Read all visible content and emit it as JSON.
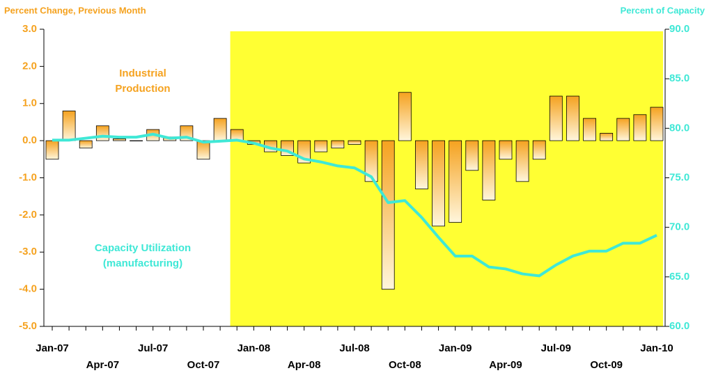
{
  "chart_data": {
    "type": "bar",
    "y_label": "Percent Change, Previous Month",
    "y2_label": "Percent of Capacity",
    "annotations": [
      {
        "lines": [
          "Industrial",
          "Production"
        ],
        "color": "#f5a21f"
      },
      {
        "lines": [
          "Capacity Utilization",
          "(manufacturing)"
        ],
        "color": "#3fe8d6"
      }
    ],
    "categories": [
      "Jan-07",
      null,
      null,
      "Apr-07",
      null,
      null,
      "Jul-07",
      null,
      null,
      "Oct-07",
      null,
      null,
      "Jan-08",
      null,
      null,
      "Apr-08",
      null,
      null,
      "Jul-08",
      null,
      null,
      "Oct-08",
      null,
      null,
      "Jan-09",
      null,
      null,
      "Apr-09",
      null,
      null,
      "Jul-09",
      null,
      null,
      "Oct-09",
      null,
      null,
      "Jan-10"
    ],
    "series": [
      {
        "type": "bar",
        "color": "#f5a21f",
        "values": [
          -0.5,
          0.8,
          -0.2,
          0.4,
          0.05,
          0.0,
          0.3,
          0.1,
          0.4,
          -0.5,
          0.6,
          0.3,
          -0.1,
          -0.3,
          -0.4,
          -0.6,
          -0.3,
          -0.2,
          -0.1,
          -1.1,
          -4.0,
          1.3,
          -1.3,
          -2.3,
          -2.2,
          -0.8,
          -1.6,
          -0.5,
          -1.1,
          -0.5,
          1.2,
          1.2,
          0.6,
          0.2,
          0.6,
          0.7,
          0.9
        ]
      },
      {
        "type": "line",
        "axis": "y2",
        "color": "#3fe8d6",
        "values": [
          78.8,
          78.8,
          79.0,
          79.2,
          79.1,
          79.1,
          79.4,
          79.0,
          79.1,
          78.6,
          78.7,
          78.8,
          78.5,
          78.0,
          77.7,
          76.9,
          76.6,
          76.2,
          76.0,
          75.1,
          72.5,
          72.7,
          71.0,
          69.0,
          67.1,
          67.1,
          66.0,
          65.8,
          65.3,
          65.1,
          66.2,
          67.1,
          67.6,
          67.6,
          68.4,
          68.4,
          69.2
        ]
      }
    ],
    "ylim": [
      -5,
      3
    ],
    "yticks": [
      {
        "value": 3,
        "label": "3.0"
      },
      {
        "value": 2,
        "label": "2.0"
      },
      {
        "value": 1,
        "label": "1.0"
      },
      {
        "value": 0,
        "label": "0.0"
      },
      {
        "value": -1,
        "label": "-1.0"
      },
      {
        "value": -2,
        "label": "-2.0"
      },
      {
        "value": -3,
        "label": "-3.0"
      },
      {
        "value": -4,
        "label": "-4.0"
      },
      {
        "value": -5,
        "label": "-5.0"
      }
    ],
    "y2lim": [
      60,
      90
    ],
    "y2ticks": [
      {
        "value": 90,
        "label": "90.0"
      },
      {
        "value": 85,
        "label": "85.0"
      },
      {
        "value": 80,
        "label": "80.0"
      },
      {
        "value": 75,
        "label": "75.0"
      },
      {
        "value": 70,
        "label": "70.0"
      },
      {
        "value": 65,
        "label": "65.0"
      },
      {
        "value": 60,
        "label": "60.0"
      }
    ],
    "shade_color": "#ffff33"
  }
}
